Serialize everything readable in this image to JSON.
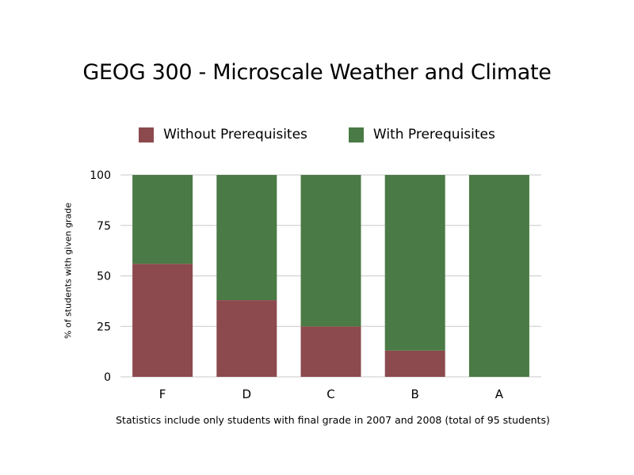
{
  "title": "GEOG 300 - Microscale Weather and Climate",
  "footnote": "Statistics include only students with final grade in 2007 and 2008 (total of 95 students)",
  "colors": {
    "without": "#8c4a4e",
    "with": "#4a7a45",
    "grid": "#c8c8c8"
  },
  "chart_data": {
    "type": "bar",
    "stacked": true,
    "title": "GEOG 300 - Microscale Weather and Climate",
    "xlabel": "",
    "ylabel": "% of students with given grade",
    "categories": [
      "F",
      "D",
      "C",
      "B",
      "A"
    ],
    "ylim": [
      0,
      100
    ],
    "yticks": [
      0,
      25,
      50,
      75,
      100
    ],
    "grid": true,
    "legend_position": "top-center",
    "series": [
      {
        "name": "Without Prerequisites",
        "color": "#8c4a4e",
        "values": [
          56,
          38,
          25,
          13,
          0
        ]
      },
      {
        "name": "With Prerequisites",
        "color": "#4a7a45",
        "values": [
          44,
          62,
          75,
          87,
          100
        ]
      }
    ]
  }
}
